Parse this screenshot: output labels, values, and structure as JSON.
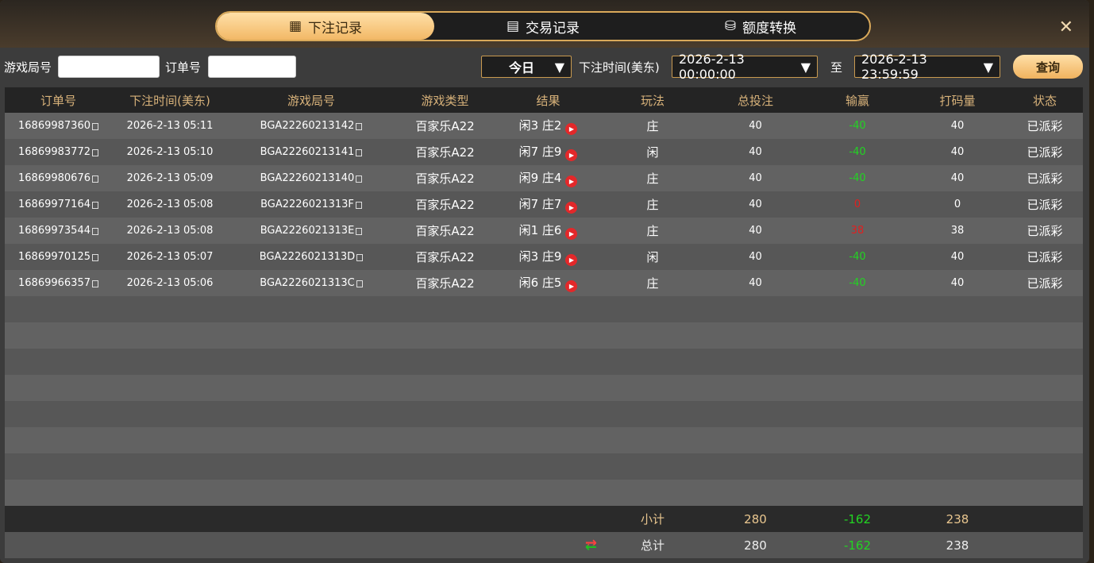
{
  "tabs": [
    {
      "label": "下注记录",
      "icon": "calendar-icon",
      "active": true
    },
    {
      "label": "交易记录",
      "icon": "clipboard-icon"
    },
    {
      "label": "额度转换",
      "icon": "coins-icon"
    }
  ],
  "filters": {
    "game_no_label": "游戏局号",
    "game_no_value": "",
    "order_no_label": "订单号",
    "order_no_value": "",
    "range": "今日",
    "time_label": "下注时间(美东)",
    "start": "2026-2-13 00:00:00",
    "to": "至",
    "end": "2026-2-13 23:59:59",
    "query": "查询"
  },
  "columns": [
    "订单号",
    "下注时间(美东)",
    "游戏局号",
    "游戏类型",
    "结果",
    "玩法",
    "总投注",
    "输赢",
    "打码量",
    "状态"
  ],
  "rows": [
    [
      "16869987360",
      "2026-2-13 05:11",
      "BGA22260213142",
      "百家乐A22",
      "闲3 庄2",
      "庄",
      "40",
      "-40",
      "40",
      "已派彩"
    ],
    [
      "16869983772",
      "2026-2-13 05:10",
      "BGA22260213141",
      "百家乐A22",
      "闲7 庄9",
      "闲",
      "40",
      "-40",
      "40",
      "已派彩"
    ],
    [
      "16869980676",
      "2026-2-13 05:09",
      "BGA22260213140",
      "百家乐A22",
      "闲9 庄4",
      "庄",
      "40",
      "-40",
      "40",
      "已派彩"
    ],
    [
      "16869977164",
      "2026-2-13 05:08",
      "BGA2226021313F",
      "百家乐A22",
      "闲7 庄7",
      "庄",
      "40",
      "0",
      "0",
      "已派彩"
    ],
    [
      "16869973544",
      "2026-2-13 05:08",
      "BGA2226021313E",
      "百家乐A22",
      "闲1 庄6",
      "庄",
      "40",
      "38",
      "38",
      "已派彩"
    ],
    [
      "16869970125",
      "2026-2-13 05:07",
      "BGA2226021313D",
      "百家乐A22",
      "闲3 庄9",
      "闲",
      "40",
      "-40",
      "40",
      "已派彩"
    ],
    [
      "16869966357",
      "2026-2-13 05:06",
      "BGA2226021313C",
      "百家乐A22",
      "闲6 庄5",
      "庄",
      "40",
      "-40",
      "40",
      "已派彩"
    ]
  ],
  "win_colors": [
    "green",
    "green",
    "green",
    "red",
    "red",
    "green",
    "green"
  ],
  "subtotal": {
    "label": "小计",
    "bet": "280",
    "win": "-162",
    "turnover": "238"
  },
  "total": {
    "label": "总计",
    "bet": "280",
    "win": "-162",
    "turnover": "238"
  },
  "colors": {
    "accent": "#f2b866",
    "win": "#22d422",
    "loss": "#e02020"
  }
}
